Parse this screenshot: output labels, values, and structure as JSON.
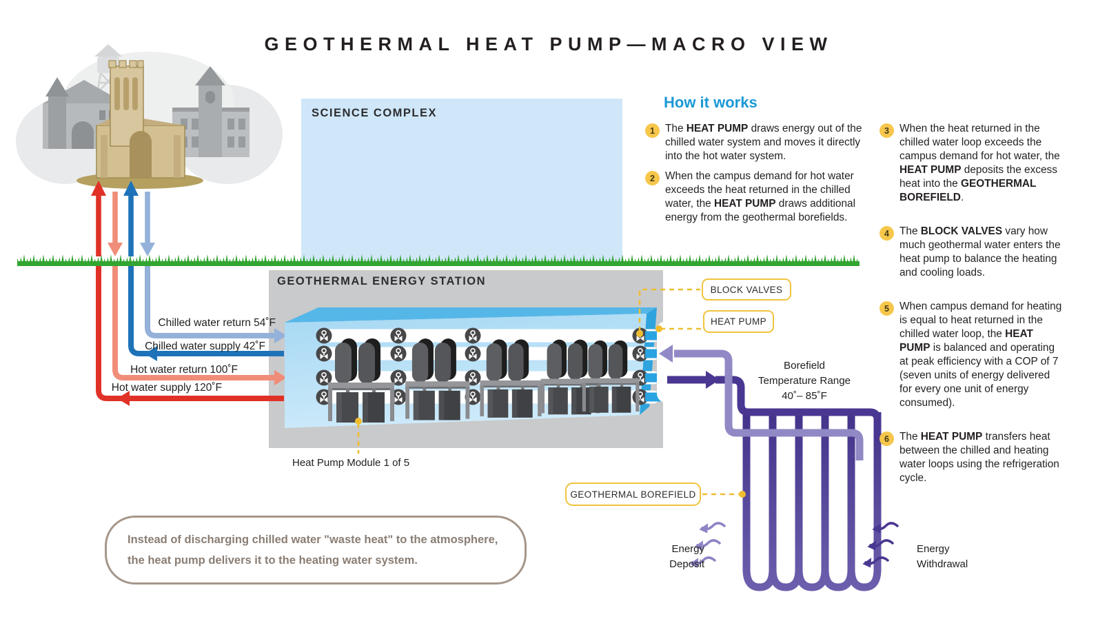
{
  "title": "GEOTHERMAL HEAT PUMP—MACRO VIEW",
  "science_complex_label": "SCIENCE COMPLEX",
  "station_label": "GEOTHERMAL ENERGY STATION",
  "pipe_labels": {
    "chilled_return": "Chilled water return 54˚F",
    "chilled_supply": "Chilled water supply 42˚F",
    "hot_return": "Hot water return 100˚F",
    "hot_supply": "Hot water supply 120˚F"
  },
  "callouts": {
    "block_valves": "BLOCK VALVES",
    "heat_pump": "HEAT PUMP",
    "geothermal_borefield": "GEOTHERMAL BOREFIELD",
    "heat_pump_module": "Heat Pump Module 1 of 5"
  },
  "borefield": {
    "line1": "Borefield",
    "line2": "Temperature Range",
    "line3": "40˚– 85˚F"
  },
  "energy": {
    "deposit_l1": "Energy",
    "deposit_l2": "Deposit",
    "withdrawal_l1": "Energy",
    "withdrawal_l2": "Withdrawal"
  },
  "how_it_works": {
    "heading": "How it works",
    "items": [
      {
        "num": "1",
        "segments": [
          {
            "t": "The "
          },
          {
            "t": "HEAT PUMP",
            "b": 1
          },
          {
            "t": " draws energy out of the chilled water system and moves it directly into the hot water system."
          }
        ]
      },
      {
        "num": "2",
        "segments": [
          {
            "t": "When the campus demand for hot water exceeds the heat returned in the chilled water, the "
          },
          {
            "t": "HEAT PUMP",
            "b": 1
          },
          {
            "t": " draws additional energy from the geothermal borefields."
          }
        ]
      },
      {
        "num": "3",
        "segments": [
          {
            "t": "When the heat returned in the chilled water loop exceeds the campus demand for hot water, the "
          },
          {
            "t": "HEAT PUMP",
            "b": 1
          },
          {
            "t": " deposits the excess heat into the "
          },
          {
            "t": "GEOTHERMAL BOREFIELD",
            "b": 1
          },
          {
            "t": "."
          }
        ]
      },
      {
        "num": "4",
        "segments": [
          {
            "t": "The "
          },
          {
            "t": "BLOCK VALVES",
            "b": 1
          },
          {
            "t": " vary how much geothermal water enters the heat pump to balance the heating and cooling loads."
          }
        ]
      },
      {
        "num": "5",
        "segments": [
          {
            "t": "When campus demand for heating is equal to heat returned in the chilled water loop, the "
          },
          {
            "t": "HEAT PUMP",
            "b": 1
          },
          {
            "t": " is balanced and operating at peak efficiency with a COP of 7 (seven units of energy delivered for every one unit of energy consumed)."
          }
        ]
      },
      {
        "num": "6",
        "segments": [
          {
            "t": "The "
          },
          {
            "t": "HEAT PUMP",
            "b": 1
          },
          {
            "t": " transfers heat between the chilled and heating water loops using the refrigeration cycle."
          }
        ]
      }
    ]
  },
  "note_text": "Instead of discharging chilled water \"waste heat\" to the atmosphere, the heat pump delivers it to the heating water system.",
  "colors": {
    "heading_blue": "#1b99d6",
    "accent_yellow": "#f0c33c",
    "hot_supply_red": "#e03127",
    "hot_return_salmon": "#f08d79",
    "chilled_supply_blue": "#1e73b8",
    "chilled_return_blue": "#93b1d9",
    "borefield_purple_dark": "#4a3791",
    "borefield_purple_light": "#9089c5",
    "grass_green": "#33a532",
    "science_complex_fill": "#cfe7f8",
    "station_gray": "#c9cacb"
  }
}
